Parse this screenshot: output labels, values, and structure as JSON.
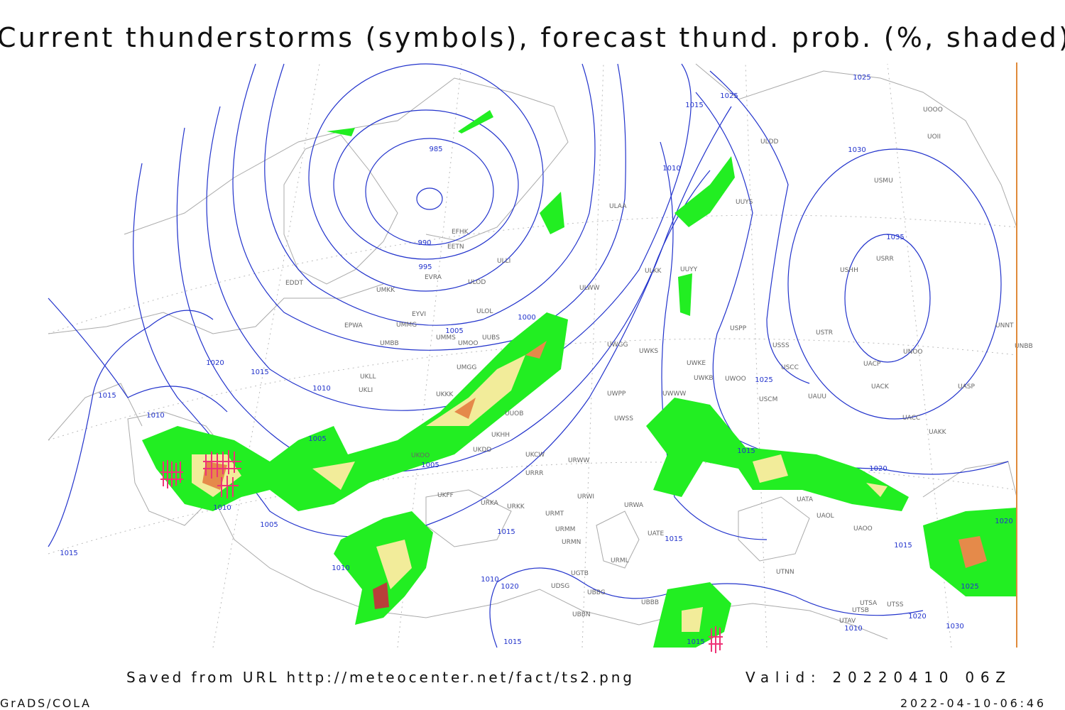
{
  "header": {
    "title": "Current thunderstorms (symbols), forecast thund. prob. (%, shaded)"
  },
  "map": {
    "isobar_labels": [
      "1025",
      "1025",
      "1015",
      "985",
      "1030",
      "1010",
      "990",
      "995",
      "1035",
      "1000",
      "1005",
      "1020",
      "1015",
      "1010",
      "1015",
      "1010",
      "1005",
      "1025",
      "1015",
      "1005",
      "1020",
      "1010",
      "1005",
      "1015",
      "1015",
      "1015",
      "1010",
      "1010",
      "1020",
      "1020",
      "1015",
      "1025",
      "1020",
      "1030",
      "1010",
      "1015",
      "1015"
    ],
    "station_labels": [
      "ULDD",
      "UUYS",
      "ULAA",
      "EFHK",
      "EETN",
      "ULLI",
      "ULKK",
      "UUYY",
      "EVRA",
      "ULOD",
      "ULWW",
      "UMKK",
      "EDDT",
      "EYVI",
      "ULOL",
      "EPWA",
      "UMMG",
      "UMMS",
      "UMOO",
      "UUBS",
      "UMBB",
      "USPP",
      "USTR",
      "USSS",
      "UNNT",
      "UNBB",
      "UNOO",
      "UWGG",
      "UWKS",
      "UWKE",
      "UACP",
      "USCC",
      "UMGG",
      "UKLL",
      "UKLI",
      "UWKB",
      "UWOO",
      "UACK",
      "UASP",
      "UWPP",
      "UWWW",
      "USCM",
      "UAUU",
      "UKKK",
      "UUOB",
      "UWSS",
      "UACC",
      "UAKK",
      "UKHH",
      "UKDD",
      "UKOO",
      "UKCW",
      "URWW",
      "URRR",
      "UKFF",
      "URWI",
      "URKA",
      "URKK",
      "URWA",
      "UATA",
      "UAOL",
      "UAOO",
      "URMT",
      "URMM",
      "URMN",
      "UATE",
      "URML",
      "UGTB",
      "UTNN",
      "UDSG",
      "UBBG",
      "UBBB",
      "UBBN",
      "UTSA",
      "UTSS",
      "UTSB",
      "UTAV",
      "UOOO",
      "UOII",
      "USRR",
      "USHH",
      "USMU"
    ]
  },
  "footer": {
    "source": "Saved from URL http://meteocenter.net/fact/ts2.png",
    "valid": "Valid: 20220410 06Z",
    "software": "GrADS/COLA",
    "timestamp": "2022-04-10-06:46"
  }
}
